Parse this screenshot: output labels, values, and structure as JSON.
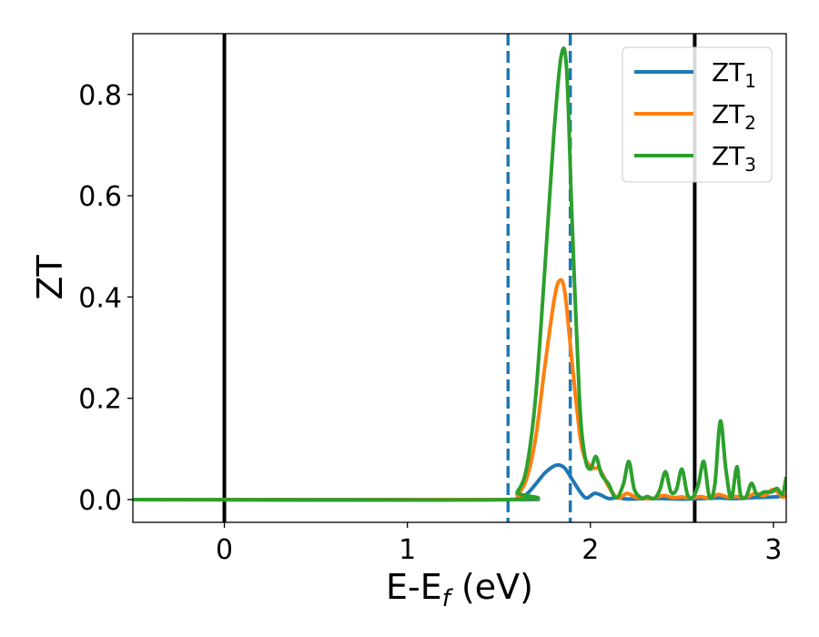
{
  "chart_data": {
    "type": "line",
    "title": "",
    "xlabel": "E-E",
    "xlabel_sub": "f",
    "xlabel_unit": " (eV)",
    "ylabel": "ZT",
    "xlim": [
      -0.5,
      3.07
    ],
    "ylim": [
      -0.045,
      0.92
    ],
    "xticks": [
      {
        "value": 0,
        "label": "0"
      },
      {
        "value": 1,
        "label": "1"
      },
      {
        "value": 2,
        "label": "2"
      },
      {
        "value": 3,
        "label": "3"
      }
    ],
    "yticks": [
      {
        "value": 0.0,
        "label": "0.0"
      },
      {
        "value": 0.2,
        "label": "0.2"
      },
      {
        "value": 0.4,
        "label": "0.4"
      },
      {
        "value": 0.6,
        "label": "0.6"
      },
      {
        "value": 0.8,
        "label": "0.8"
      }
    ],
    "grid": false,
    "legend_position": "top-right",
    "vlines": [
      {
        "x": 0.0,
        "style": "solid",
        "color": "#000000"
      },
      {
        "x": 2.57,
        "style": "solid",
        "color": "#000000"
      },
      {
        "x": 1.55,
        "style": "dashed",
        "color": "#1f77b4"
      },
      {
        "x": 1.89,
        "style": "dashed",
        "color": "#1f77b4"
      }
    ],
    "series": [
      {
        "name": "ZT",
        "sub": "1",
        "color": "#1f77b4",
        "points": [
          [
            -0.5,
            0
          ],
          [
            1.55,
            0
          ],
          [
            1.6,
            0.002
          ],
          [
            1.65,
            0.01
          ],
          [
            1.7,
            0.03
          ],
          [
            1.75,
            0.052
          ],
          [
            1.8,
            0.066
          ],
          [
            1.83,
            0.068
          ],
          [
            1.86,
            0.062
          ],
          [
            1.9,
            0.04
          ],
          [
            1.95,
            0.012
          ],
          [
            1.98,
            0.003
          ],
          [
            2.02,
            0.012
          ],
          [
            2.05,
            0.01
          ],
          [
            2.1,
            0.002
          ],
          [
            2.15,
            0.004
          ],
          [
            2.2,
            0.001
          ],
          [
            2.3,
            0.002
          ],
          [
            2.4,
            0.002
          ],
          [
            2.5,
            0.001
          ],
          [
            2.6,
            0.002
          ],
          [
            2.7,
            0.003
          ],
          [
            2.8,
            0.002
          ],
          [
            2.9,
            0.004
          ],
          [
            3.0,
            0.005
          ],
          [
            3.07,
            0.008
          ]
        ]
      },
      {
        "name": "ZT",
        "sub": "2",
        "color": "#ff7f0e",
        "points": [
          [
            -0.5,
            0
          ],
          [
            1.55,
            0
          ],
          [
            1.6,
            0.01
          ],
          [
            1.65,
            0.04
          ],
          [
            1.7,
            0.12
          ],
          [
            1.75,
            0.26
          ],
          [
            1.8,
            0.39
          ],
          [
            1.83,
            0.432
          ],
          [
            1.86,
            0.41
          ],
          [
            1.9,
            0.27
          ],
          [
            1.95,
            0.11
          ],
          [
            2.0,
            0.065
          ],
          [
            2.05,
            0.06
          ],
          [
            2.1,
            0.025
          ],
          [
            2.15,
            0.003
          ],
          [
            2.2,
            0.012
          ],
          [
            2.25,
            0.004
          ],
          [
            2.3,
            0.002
          ],
          [
            2.35,
            0.003
          ],
          [
            2.4,
            0.008
          ],
          [
            2.45,
            0.004
          ],
          [
            2.5,
            0.005
          ],
          [
            2.55,
            0.003
          ],
          [
            2.6,
            0.006
          ],
          [
            2.65,
            0.003
          ],
          [
            2.7,
            0.01
          ],
          [
            2.75,
            0.005
          ],
          [
            2.8,
            0.006
          ],
          [
            2.85,
            0.004
          ],
          [
            2.9,
            0.012
          ],
          [
            2.95,
            0.008
          ],
          [
            3.0,
            0.02
          ],
          [
            3.05,
            0.005
          ],
          [
            3.07,
            0.01
          ]
        ]
      },
      {
        "name": "ZT",
        "sub": "3",
        "color": "#2ca02c",
        "points": [
          [
            -0.5,
            0
          ],
          [
            1.55,
            0
          ],
          [
            1.6,
            0.015
          ],
          [
            1.65,
            0.06
          ],
          [
            1.7,
            0.2
          ],
          [
            1.75,
            0.45
          ],
          [
            1.8,
            0.72
          ],
          [
            1.84,
            0.875
          ],
          [
            1.87,
            0.85
          ],
          [
            1.9,
            0.55
          ],
          [
            1.94,
            0.2
          ],
          [
            1.97,
            0.085
          ],
          [
            2.0,
            0.06
          ],
          [
            2.03,
            0.085
          ],
          [
            2.06,
            0.05
          ],
          [
            2.1,
            0.03
          ],
          [
            2.14,
            0.003
          ],
          [
            2.18,
            0.03
          ],
          [
            2.21,
            0.075
          ],
          [
            2.24,
            0.02
          ],
          [
            2.28,
            0.003
          ],
          [
            2.31,
            0.006
          ],
          [
            2.35,
            0.002
          ],
          [
            2.38,
            0.02
          ],
          [
            2.41,
            0.055
          ],
          [
            2.44,
            0.015
          ],
          [
            2.47,
            0.02
          ],
          [
            2.5,
            0.06
          ],
          [
            2.53,
            0.01
          ],
          [
            2.56,
            0.005
          ],
          [
            2.59,
            0.03
          ],
          [
            2.62,
            0.075
          ],
          [
            2.65,
            0.005
          ],
          [
            2.68,
            0.03
          ],
          [
            2.71,
            0.155
          ],
          [
            2.74,
            0.06
          ],
          [
            2.77,
            0.002
          ],
          [
            2.8,
            0.065
          ],
          [
            2.82,
            0.01
          ],
          [
            2.85,
            0.005
          ],
          [
            2.88,
            0.032
          ],
          [
            2.91,
            0.01
          ],
          [
            2.95,
            0.015
          ],
          [
            2.99,
            0.015
          ],
          [
            3.02,
            0.022
          ],
          [
            3.05,
            0.01
          ],
          [
            3.07,
            0.045
          ]
        ]
      }
    ]
  }
}
